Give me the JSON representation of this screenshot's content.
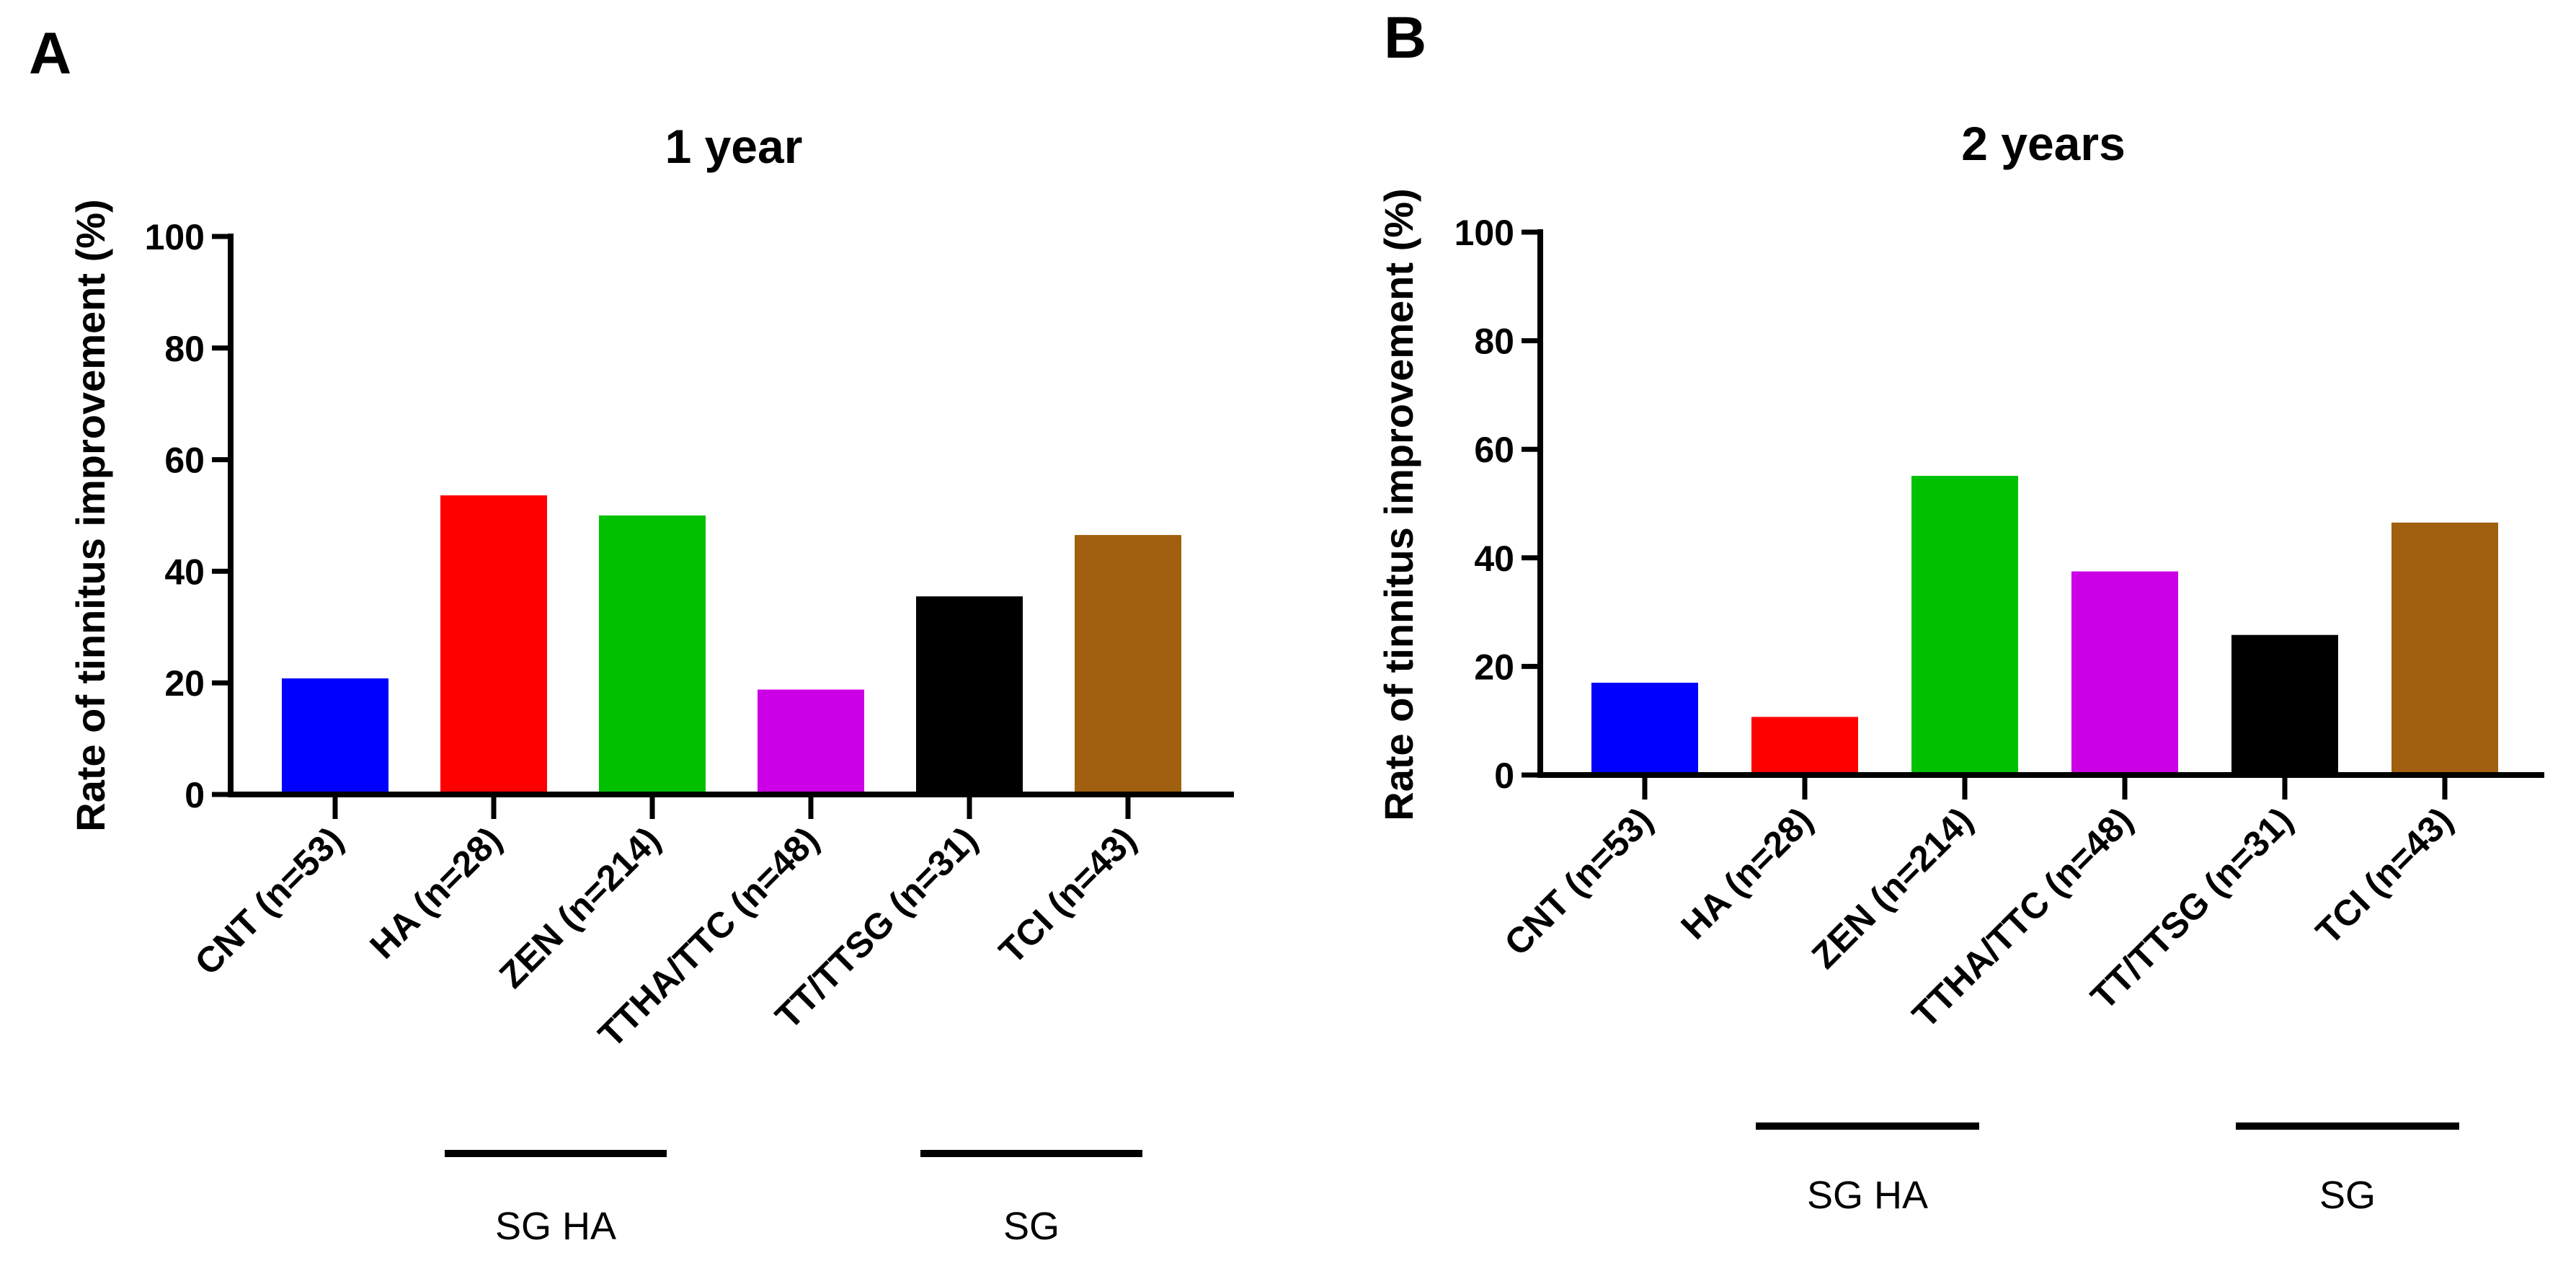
{
  "chart_data": [
    {
      "type": "bar",
      "panel": "A",
      "title": "1 year",
      "xlabel": "",
      "ylabel": "Rate of tinnitus improvement (%)",
      "ylim": [
        0,
        100
      ],
      "yticks": [
        0,
        20,
        40,
        60,
        80,
        100
      ],
      "categories": [
        "CNT (n=53)",
        "HA (n=28)",
        "ZEN (n=214)",
        "TTHA/TTC (n=48)",
        "TT/TTSG (n=31)",
        "TCI (n=43)"
      ],
      "values": [
        20.8,
        53.6,
        50.0,
        18.8,
        35.5,
        46.5
      ],
      "colors": [
        "#0000ff",
        "#ff0000",
        "#00c000",
        "#cc00e6",
        "#000000",
        "#a0600f"
      ],
      "groups": [
        {
          "label": "SG HA",
          "categories": [
            "HA (n=28)",
            "ZEN (n=214)"
          ]
        },
        {
          "label": "SG",
          "categories": [
            "TT/TTSG (n=31)",
            "TCI (n=43)"
          ]
        }
      ],
      "grid": false
    },
    {
      "type": "bar",
      "panel": "B",
      "title": "2 years",
      "xlabel": "",
      "ylabel": "Rate of tinnitus improvement (%)",
      "ylim": [
        0,
        100
      ],
      "yticks": [
        0,
        20,
        40,
        60,
        80,
        100
      ],
      "categories": [
        "CNT (n=53)",
        "HA (n=28)",
        "ZEN (n=214)",
        "TTHA/TTC (n=48)",
        "TT/TTSG (n=31)",
        "TCI (n=43)"
      ],
      "values": [
        17.0,
        10.7,
        55.1,
        37.5,
        25.8,
        46.5
      ],
      "colors": [
        "#0000ff",
        "#ff0000",
        "#00c000",
        "#cc00e6",
        "#000000",
        "#a0600f"
      ],
      "groups": [
        {
          "label": "SG HA",
          "categories": [
            "HA (n=28)",
            "ZEN (n=214)"
          ]
        },
        {
          "label": "SG",
          "categories": [
            "TT/TTSG (n=31)",
            "TCI (n=43)"
          ]
        }
      ],
      "grid": false
    }
  ]
}
